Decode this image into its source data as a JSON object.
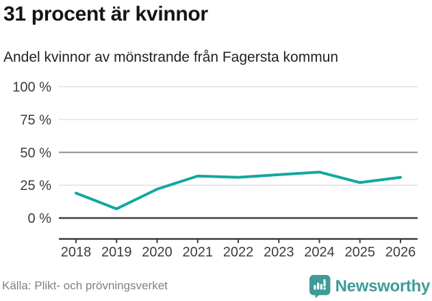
{
  "header": {
    "title": "31 procent är kvinnor",
    "subtitle": "Andel kvinnor av mönstrande från Fagersta kommun"
  },
  "chart_data": {
    "type": "line",
    "title": "31 procent är kvinnor",
    "subtitle": "Andel kvinnor av mönstrande från Fagersta kommun",
    "categories": [
      "2018",
      "2019",
      "2020",
      "2021",
      "2022",
      "2023",
      "2024",
      "2025",
      "2026"
    ],
    "series": [
      {
        "name": "Andel kvinnor av mönstrande",
        "values": [
          19,
          7,
          22,
          32,
          31,
          33,
          35,
          27,
          31
        ]
      }
    ],
    "xlabel": "",
    "ylabel": "",
    "ylim": [
      0,
      100
    ],
    "yticks": [
      {
        "value": 0,
        "label": "0 %"
      },
      {
        "value": 25,
        "label": "25 %"
      },
      {
        "value": 50,
        "label": "50 %"
      },
      {
        "value": 75,
        "label": "75 %"
      },
      {
        "value": 100,
        "label": "100 %"
      }
    ],
    "grid": "on",
    "legend": "none",
    "line_color": "#12a89e",
    "gridline_color_light": "#e0e0e0",
    "gridline_color_mid": "#8f8f8f",
    "axis_color_dark": "#3d3d3d",
    "tick_label_color": "#3c3c3c"
  },
  "footer": {
    "source": "Källa: Plikt- och prövningsverket",
    "brand": "Newsworthy",
    "brand_color": "#3e9c97",
    "logo_icon": "newsworthy-badge-bar-chart-exclamation-icon"
  }
}
